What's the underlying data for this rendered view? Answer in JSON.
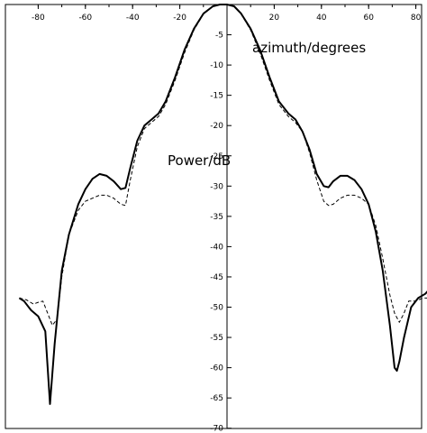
{
  "chart_data": {
    "type": "line",
    "title": "",
    "xlabel": "azimuth/degrees",
    "ylabel": "Power/dB",
    "xlim": [
      -88,
      88
    ],
    "ylim": [
      -70,
      0
    ],
    "grid": false,
    "legend": "none",
    "x_ticks": [
      -80,
      -60,
      -40,
      -20,
      20,
      40,
      60,
      80
    ],
    "x_tick_labels": [
      "-80",
      "-60",
      "-40",
      "-20",
      "20",
      "40",
      "60",
      "80"
    ],
    "y_ticks": [
      -5,
      -10,
      -15,
      -20,
      -25,
      -30,
      -35,
      -40,
      -45,
      -50,
      -55,
      -60,
      -65,
      -70
    ],
    "y_tick_labels": [
      "-5",
      "-10",
      "-15",
      "-20",
      "-25",
      "-30",
      "-35",
      "-40",
      "-45",
      "-50",
      "-55",
      "-60",
      "-65",
      "-70"
    ],
    "series": [
      {
        "style": "solid",
        "color": "#000000",
        "x": [
          -88,
          -86,
          -83,
          -80,
          -77,
          -76,
          -75,
          -73,
          -70,
          -67,
          -63,
          -60,
          -57,
          -54,
          -51,
          -48,
          -45,
          -43,
          -41,
          -38,
          -35,
          -32,
          -29,
          -26,
          -22,
          -18,
          -14,
          -10,
          -6,
          -3,
          0,
          3,
          6,
          10,
          14,
          18,
          22,
          26,
          29,
          32,
          35,
          38,
          41,
          43,
          45,
          48,
          51,
          54,
          57,
          60,
          63,
          66,
          69,
          71,
          72,
          73,
          75,
          78,
          81,
          84,
          87
        ],
        "y": [
          -48.5,
          -49,
          -50.5,
          -51.5,
          -54,
          -60,
          -66,
          -56,
          -44,
          -38,
          -33,
          -30.5,
          -28.8,
          -28,
          -28.3,
          -29.2,
          -30.5,
          -30.3,
          -27,
          -22.5,
          -20,
          -19,
          -18,
          -16,
          -12,
          -7.5,
          -4,
          -1.5,
          -0.3,
          0,
          0,
          -0.3,
          -1.5,
          -4,
          -7.5,
          -12,
          -16,
          -18,
          -19,
          -21,
          -24,
          -28,
          -30,
          -30.2,
          -29.2,
          -28.3,
          -28.3,
          -29,
          -30.5,
          -33,
          -37.5,
          -44,
          -53,
          -60,
          -60.5,
          -59,
          -55,
          -50,
          -48.5,
          -47.8,
          -46.5
        ]
      },
      {
        "style": "dashed",
        "color": "#000000",
        "x": [
          -88,
          -85,
          -82,
          -80,
          -78,
          -76,
          -74,
          -72,
          -70,
          -67,
          -63,
          -60,
          -57,
          -54,
          -51,
          -48,
          -45,
          -43,
          -41,
          -38,
          -35,
          -32,
          -29,
          -26,
          -22,
          -18,
          -14,
          -10,
          -6,
          -3,
          0,
          3,
          6,
          10,
          14,
          18,
          22,
          26,
          29,
          32,
          35,
          38,
          41,
          43,
          45,
          48,
          51,
          54,
          57,
          60,
          63,
          66,
          69,
          71,
          73,
          75,
          77,
          80,
          83,
          87
        ],
        "y": [
          -48.5,
          -48.8,
          -49.5,
          -49.2,
          -49,
          -51,
          -53,
          -52,
          -45,
          -38,
          -34,
          -32.5,
          -32,
          -31.5,
          -31.5,
          -32,
          -33,
          -33.2,
          -29,
          -23.5,
          -20.5,
          -19.5,
          -18.5,
          -16.5,
          -12.5,
          -8,
          -4.2,
          -1.6,
          -0.3,
          0,
          0,
          -0.3,
          -1.6,
          -4.2,
          -8,
          -12.5,
          -16.5,
          -18.5,
          -19.5,
          -21,
          -24.5,
          -29,
          -32.5,
          -33.2,
          -33,
          -32,
          -31.5,
          -31.5,
          -32,
          -33,
          -36.5,
          -42,
          -48,
          -51,
          -52.5,
          -51,
          -49,
          -49,
          -48.5,
          -48.5
        ]
      }
    ]
  }
}
